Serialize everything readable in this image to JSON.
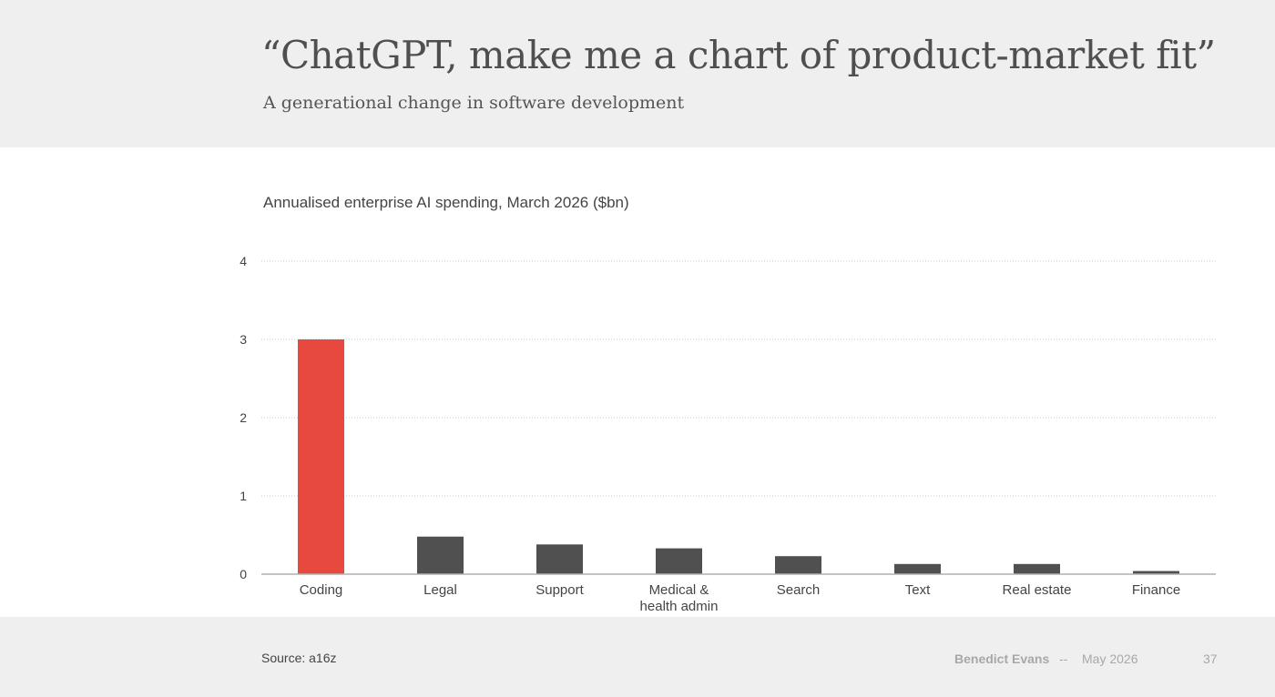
{
  "slide": {
    "title": "“ChatGPT, make me a chart of product-market fit”",
    "subtitle": "A generational change in software development"
  },
  "chart_data": {
    "type": "bar",
    "title": "Annualised enterprise AI spending, March 2026 ($bn)",
    "xlabel": "",
    "ylabel": "",
    "ylim": [
      0,
      4
    ],
    "yticks": [
      0,
      1,
      2,
      3,
      4
    ],
    "grid": true,
    "legend": "none",
    "categories": [
      [
        "Coding"
      ],
      [
        "Legal"
      ],
      [
        "Support"
      ],
      [
        "Medical &",
        "health admin"
      ],
      [
        "Search"
      ],
      [
        "Text"
      ],
      [
        "Real estate"
      ],
      [
        "Finance"
      ]
    ],
    "values": [
      3.0,
      0.48,
      0.38,
      0.33,
      0.23,
      0.13,
      0.13,
      0.04
    ],
    "colors": {
      "highlight": "#e8493f",
      "bar": "#505050",
      "grid": "#c8c8c8",
      "axis": "#b0b0b0"
    },
    "highlight_index": 0
  },
  "footer": {
    "source": "Source: a16z",
    "author": "Benedict Evans",
    "separator": "--",
    "date": "May 2026",
    "page_number": "37"
  }
}
